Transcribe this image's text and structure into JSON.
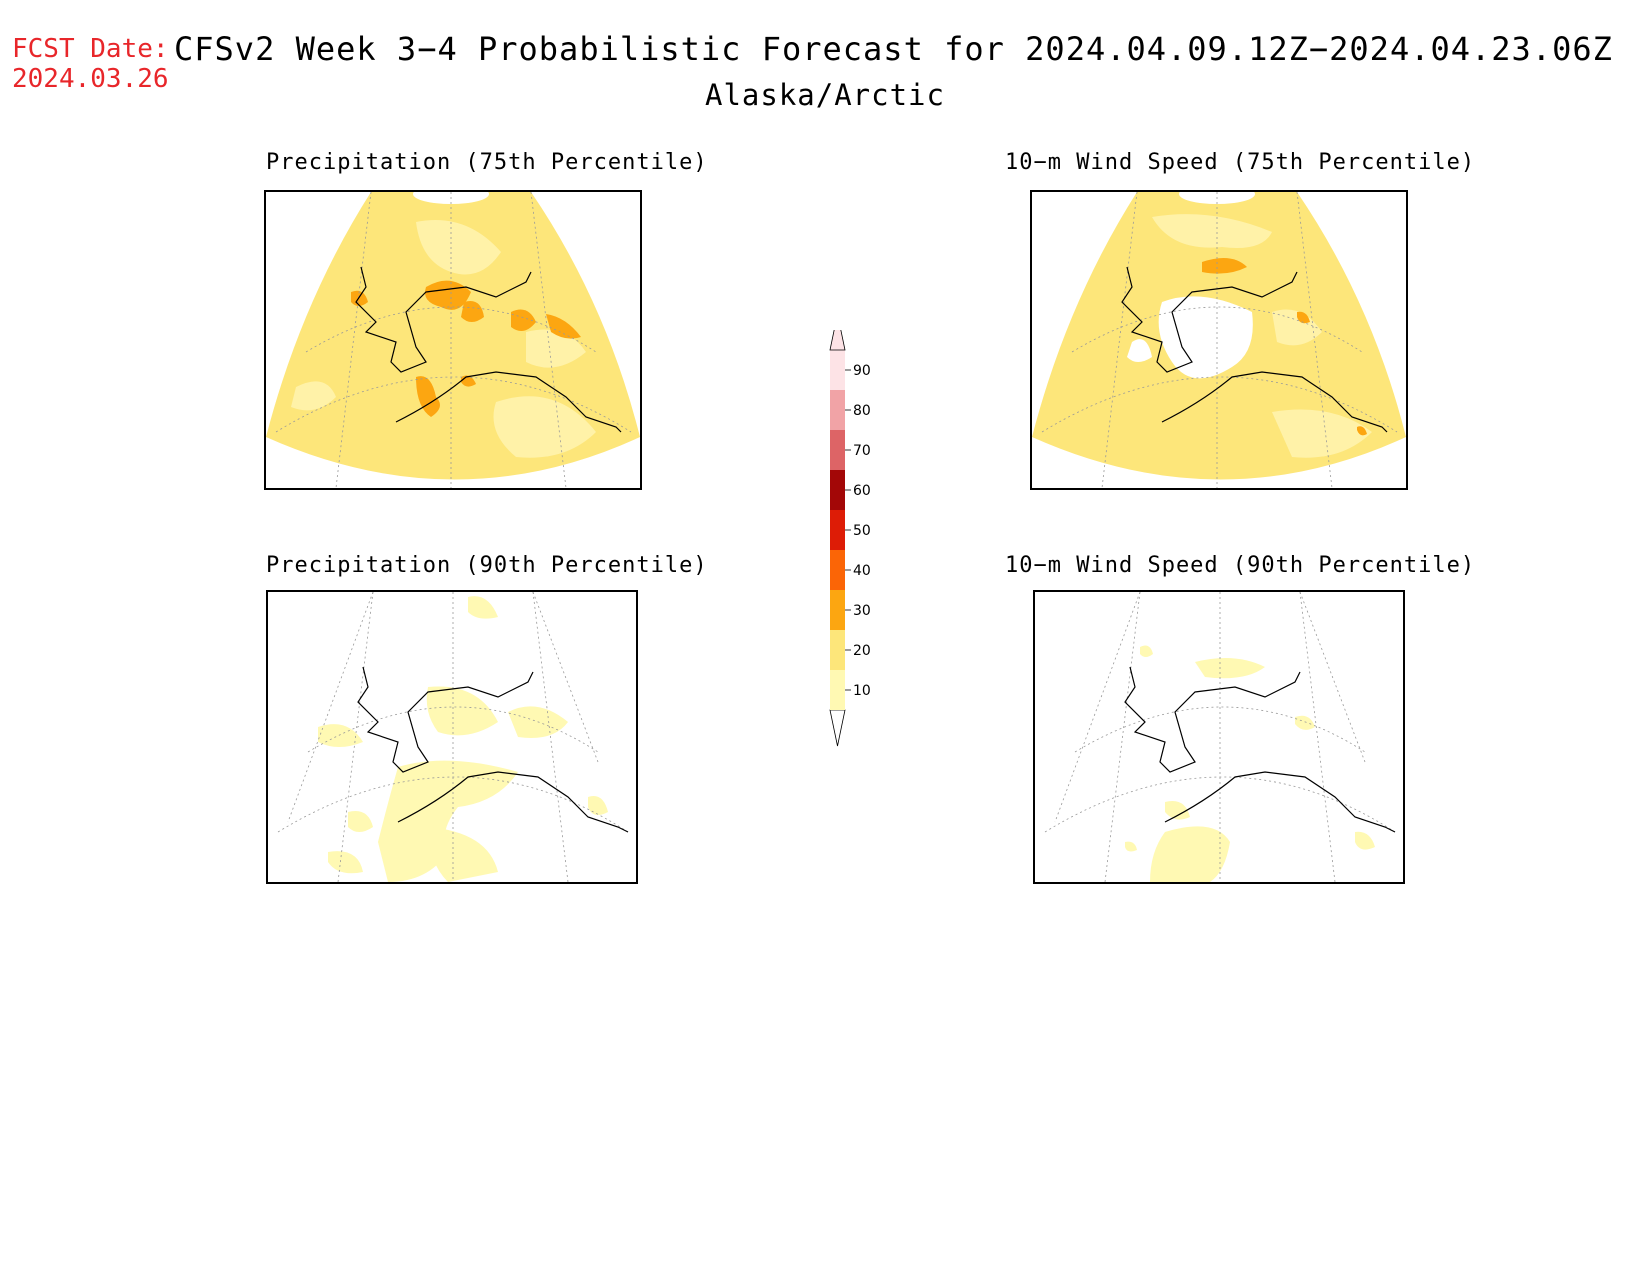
{
  "header": {
    "fcst_label": "FCST Date:",
    "fcst_date": "2024.03.26",
    "title": "CFSv2 Week 3−4 Probabilistic Forecast for 2024.04.09.12Z−2024.04.23.06Z",
    "region": "Alaska/Arctic"
  },
  "panels": [
    {
      "title": "Precipitation (75th Percentile)"
    },
    {
      "title": "10−m Wind Speed (75th Percentile)"
    },
    {
      "title": "Precipitation (90th Percentile)"
    },
    {
      "title": "10−m Wind Speed (90th Percentile)"
    }
  ],
  "legend": {
    "levels": [
      "10",
      "20",
      "30",
      "40",
      "50",
      "60",
      "70",
      "80",
      "90"
    ],
    "colors": [
      "#fff9b3",
      "#fde67a",
      "#fca611",
      "#fb6506",
      "#dd1c06",
      "#a30707",
      "#dd6466",
      "#f1a3a6",
      "#fde3e6"
    ]
  }
}
